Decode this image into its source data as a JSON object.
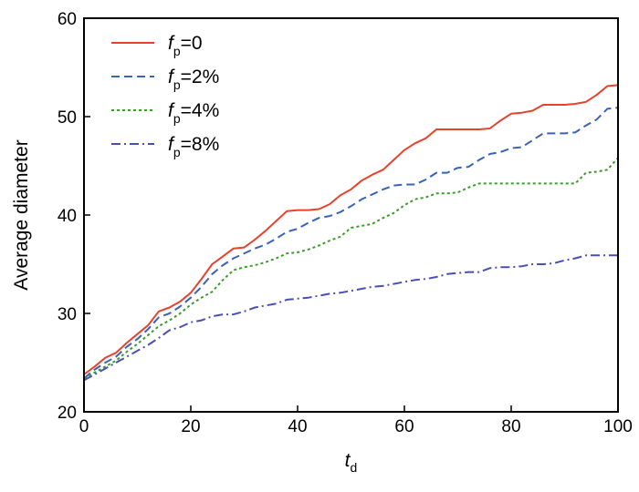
{
  "chart_data": {
    "type": "line",
    "xlabel": {
      "main": "t",
      "sub": "d"
    },
    "ylabel": "Average diameter",
    "xlim": [
      0,
      100
    ],
    "ylim": [
      20,
      60
    ],
    "xticks": [
      0,
      20,
      40,
      60,
      80,
      100
    ],
    "yticks": [
      20,
      30,
      40,
      50,
      60
    ],
    "grid": false,
    "legend_position": "top-left",
    "series": [
      {
        "name": {
          "main": "f",
          "sub": "p",
          "suffix": "=0"
        },
        "color": "#e8412c",
        "style": "solid",
        "x": [
          0,
          2,
          4,
          6,
          8,
          10,
          12,
          14,
          16,
          18,
          20,
          22,
          24,
          26,
          28,
          30,
          32,
          34,
          36,
          38,
          40,
          42,
          44,
          46,
          48,
          50,
          52,
          54,
          56,
          58,
          60,
          62,
          64,
          66,
          68,
          70,
          72,
          74,
          76,
          78,
          80,
          82,
          84,
          86,
          88,
          90,
          92,
          94,
          96,
          98,
          100
        ],
        "y": [
          23.8,
          24.6,
          25.5,
          26.0,
          27.0,
          27.9,
          28.8,
          30.2,
          30.6,
          31.2,
          32.1,
          33.5,
          35.0,
          35.8,
          36.6,
          36.7,
          37.5,
          38.4,
          39.4,
          40.4,
          40.5,
          40.5,
          40.6,
          41.1,
          42.0,
          42.6,
          43.5,
          44.1,
          44.6,
          45.6,
          46.6,
          47.3,
          47.8,
          48.7,
          48.7,
          48.7,
          48.7,
          48.7,
          48.8,
          49.6,
          50.3,
          50.4,
          50.6,
          51.2,
          51.2,
          51.2,
          51.3,
          51.5,
          52.2,
          53.1,
          53.2
        ]
      },
      {
        "name": {
          "main": "f",
          "sub": "p",
          "suffix": "=2%"
        },
        "color": "#3a62b8",
        "style": "dashed",
        "x": [
          0,
          2,
          4,
          6,
          8,
          10,
          12,
          14,
          16,
          18,
          20,
          22,
          24,
          26,
          28,
          30,
          32,
          34,
          36,
          38,
          40,
          42,
          44,
          46,
          48,
          50,
          52,
          54,
          56,
          58,
          60,
          62,
          64,
          66,
          68,
          70,
          72,
          74,
          76,
          78,
          80,
          82,
          84,
          86,
          88,
          90,
          92,
          94,
          96,
          98,
          100
        ],
        "y": [
          23.4,
          24.3,
          25.0,
          25.6,
          26.6,
          27.4,
          28.4,
          29.6,
          30.0,
          30.7,
          31.6,
          32.7,
          34.0,
          34.9,
          35.6,
          36.1,
          36.6,
          37.0,
          37.6,
          38.3,
          38.6,
          39.2,
          39.7,
          39.9,
          40.3,
          40.9,
          41.6,
          42.1,
          42.6,
          43.0,
          43.1,
          43.1,
          43.6,
          44.3,
          44.3,
          44.8,
          44.9,
          45.6,
          46.2,
          46.4,
          46.8,
          46.9,
          47.6,
          48.3,
          48.3,
          48.3,
          48.4,
          49.1,
          49.7,
          50.8,
          50.9
        ]
      },
      {
        "name": {
          "main": "f",
          "sub": "p",
          "suffix": "=4%"
        },
        "color": "#3f9a2e",
        "style": "dotted",
        "x": [
          0,
          2,
          4,
          6,
          8,
          10,
          12,
          14,
          16,
          18,
          20,
          22,
          24,
          26,
          28,
          30,
          32,
          34,
          36,
          38,
          40,
          42,
          44,
          46,
          48,
          50,
          52,
          54,
          56,
          58,
          60,
          62,
          64,
          66,
          68,
          70,
          72,
          74,
          76,
          78,
          80,
          82,
          84,
          86,
          88,
          90,
          92,
          94,
          96,
          98,
          100
        ],
        "y": [
          23.4,
          24.0,
          24.6,
          25.2,
          26.1,
          26.9,
          27.8,
          28.7,
          29.3,
          30.0,
          30.9,
          31.6,
          32.2,
          33.4,
          34.4,
          34.7,
          34.9,
          35.2,
          35.6,
          36.1,
          36.2,
          36.5,
          36.9,
          37.4,
          37.8,
          38.7,
          38.9,
          39.1,
          39.7,
          40.2,
          41.0,
          41.6,
          41.8,
          42.2,
          42.2,
          42.3,
          42.8,
          43.2,
          43.2,
          43.2,
          43.2,
          43.2,
          43.2,
          43.2,
          43.2,
          43.2,
          43.2,
          44.3,
          44.4,
          44.6,
          45.8
        ]
      },
      {
        "name": {
          "main": "f",
          "sub": "p",
          "suffix": "=8%"
        },
        "color": "#4a4fb8",
        "style": "dashdot",
        "x": [
          0,
          2,
          4,
          6,
          8,
          10,
          12,
          14,
          16,
          18,
          20,
          22,
          24,
          26,
          28,
          30,
          32,
          34,
          36,
          38,
          40,
          42,
          44,
          46,
          48,
          50,
          52,
          54,
          56,
          58,
          60,
          62,
          64,
          66,
          68,
          70,
          72,
          74,
          76,
          78,
          80,
          82,
          84,
          86,
          88,
          90,
          92,
          94,
          96,
          98,
          100
        ],
        "y": [
          23.2,
          23.8,
          24.4,
          25.0,
          25.6,
          26.2,
          26.8,
          27.5,
          28.3,
          28.6,
          29.1,
          29.3,
          29.7,
          29.9,
          29.9,
          30.2,
          30.6,
          30.8,
          31.0,
          31.4,
          31.5,
          31.6,
          31.8,
          32.0,
          32.1,
          32.3,
          32.5,
          32.7,
          32.8,
          33.0,
          33.2,
          33.4,
          33.5,
          33.7,
          34.0,
          34.1,
          34.2,
          34.2,
          34.6,
          34.7,
          34.7,
          34.8,
          35.0,
          35.0,
          35.1,
          35.4,
          35.6,
          35.9,
          35.9,
          35.9,
          35.9
        ]
      }
    ]
  }
}
